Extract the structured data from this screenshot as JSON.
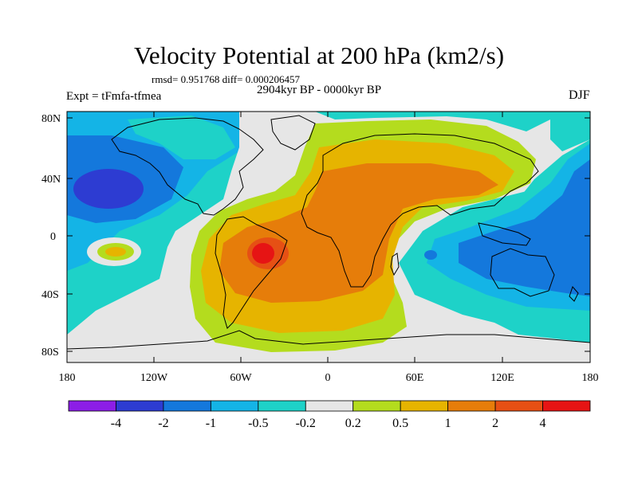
{
  "title": "Velocity Potential at 200 hPa (km2/s)",
  "stats": "rmsd= 0.951768 diff= 0.000206457",
  "period": "2904kyr BP - 0000kyr BP",
  "experiment": "Expt = tFmfa-tfmea",
  "season": "DJF",
  "lat_labels": [
    "80N",
    "40N",
    "0",
    "40S",
    "80S"
  ],
  "lon_labels": [
    "180",
    "120W",
    "60W",
    "0",
    "60E",
    "120E",
    "180"
  ],
  "colorbar": {
    "labels": [
      "-4",
      "-2",
      "-1",
      "-0.5",
      "-0.2",
      "0.2",
      "0.5",
      "1",
      "2",
      "4"
    ],
    "colors": [
      "#8c1ee6",
      "#2d3cd2",
      "#1478dc",
      "#14b4e6",
      "#1ed2c8",
      "#e6e6e6",
      "#b4dc1e",
      "#e6b400",
      "#e67d0a",
      "#e65014",
      "#e61414"
    ]
  }
}
